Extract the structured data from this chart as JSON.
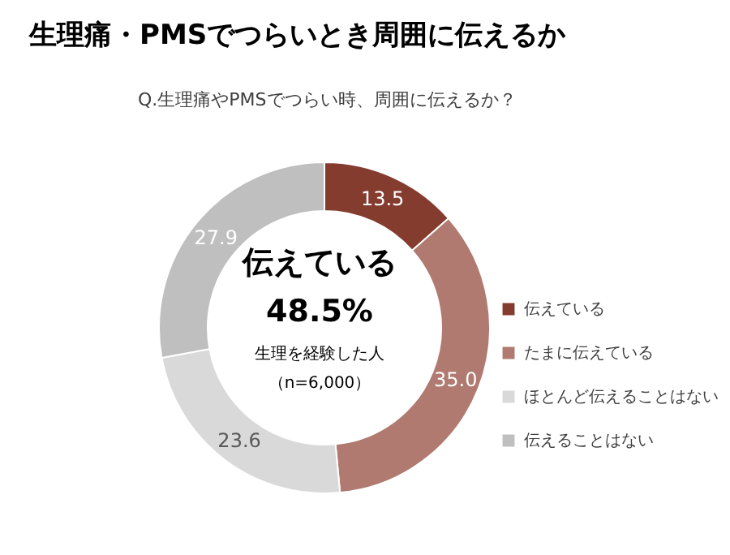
{
  "chart_data": {
    "type": "donut",
    "title": "生理痛・PMSでつらいとき周囲に伝えるか",
    "subtitle": "Q.生理痛やPMSでつらい時、周囲に伝えるか？",
    "categories": [
      "伝えている",
      "たまに伝えている",
      "ほとんど伝えることはない",
      "伝えることはない"
    ],
    "values": [
      13.5,
      35.0,
      23.6,
      27.9
    ],
    "colors": [
      "#843c2f",
      "#b07a70",
      "#d9d9d9",
      "#bfbfbf"
    ],
    "value_labels": [
      "13.5",
      "35.0",
      "23.6",
      "27.9"
    ],
    "annotations": [
      "伝えている",
      "48.5%",
      "生理を経験した人",
      "（n=6,000）"
    ],
    "legend": "right"
  }
}
